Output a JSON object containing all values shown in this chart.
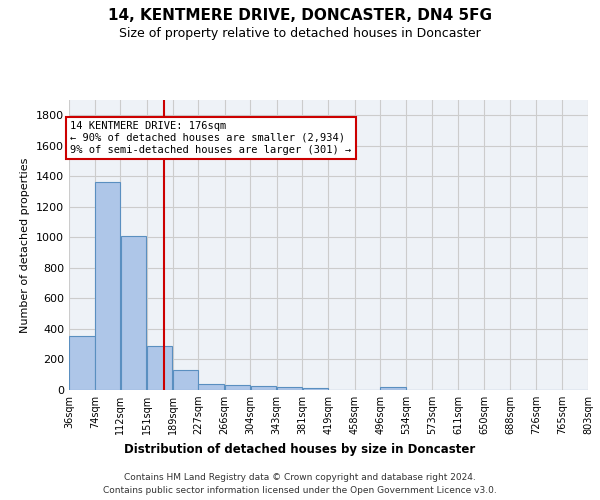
{
  "title": "14, KENTMERE DRIVE, DONCASTER, DN4 5FG",
  "subtitle": "Size of property relative to detached houses in Doncaster",
  "xlabel": "Distribution of detached houses by size in Doncaster",
  "ylabel": "Number of detached properties",
  "footer_line1": "Contains HM Land Registry data © Crown copyright and database right 2024.",
  "footer_line2": "Contains public sector information licensed under the Open Government Licence v3.0.",
  "annotation_line1": "14 KENTMERE DRIVE: 176sqm",
  "annotation_line2": "← 90% of detached houses are smaller (2,934)",
  "annotation_line3": "9% of semi-detached houses are larger (301) →",
  "property_size": 176,
  "bar_left_edges": [
    36,
    74,
    112,
    151,
    189,
    227,
    266,
    304,
    343,
    381,
    419,
    458,
    496,
    534,
    573,
    611,
    650,
    688,
    726,
    765
  ],
  "bin_width": 38,
  "bar_heights": [
    355,
    1365,
    1010,
    290,
    130,
    42,
    35,
    28,
    20,
    15,
    0,
    0,
    18,
    0,
    0,
    0,
    0,
    0,
    0,
    0
  ],
  "bar_color": "#aec6e8",
  "bar_edge_color": "#5a8fc0",
  "vline_color": "#cc0000",
  "vline_x": 176,
  "annotation_box_color": "#cc0000",
  "ylim": [
    0,
    1900
  ],
  "yticks": [
    0,
    200,
    400,
    600,
    800,
    1000,
    1200,
    1400,
    1600,
    1800
  ],
  "grid_color": "#cccccc",
  "bg_color": "#eef2f7",
  "tick_labels": [
    "36sqm",
    "74sqm",
    "112sqm",
    "151sqm",
    "189sqm",
    "227sqm",
    "266sqm",
    "304sqm",
    "343sqm",
    "381sqm",
    "419sqm",
    "458sqm",
    "496sqm",
    "534sqm",
    "573sqm",
    "611sqm",
    "650sqm",
    "688sqm",
    "726sqm",
    "765sqm",
    "803sqm"
  ]
}
